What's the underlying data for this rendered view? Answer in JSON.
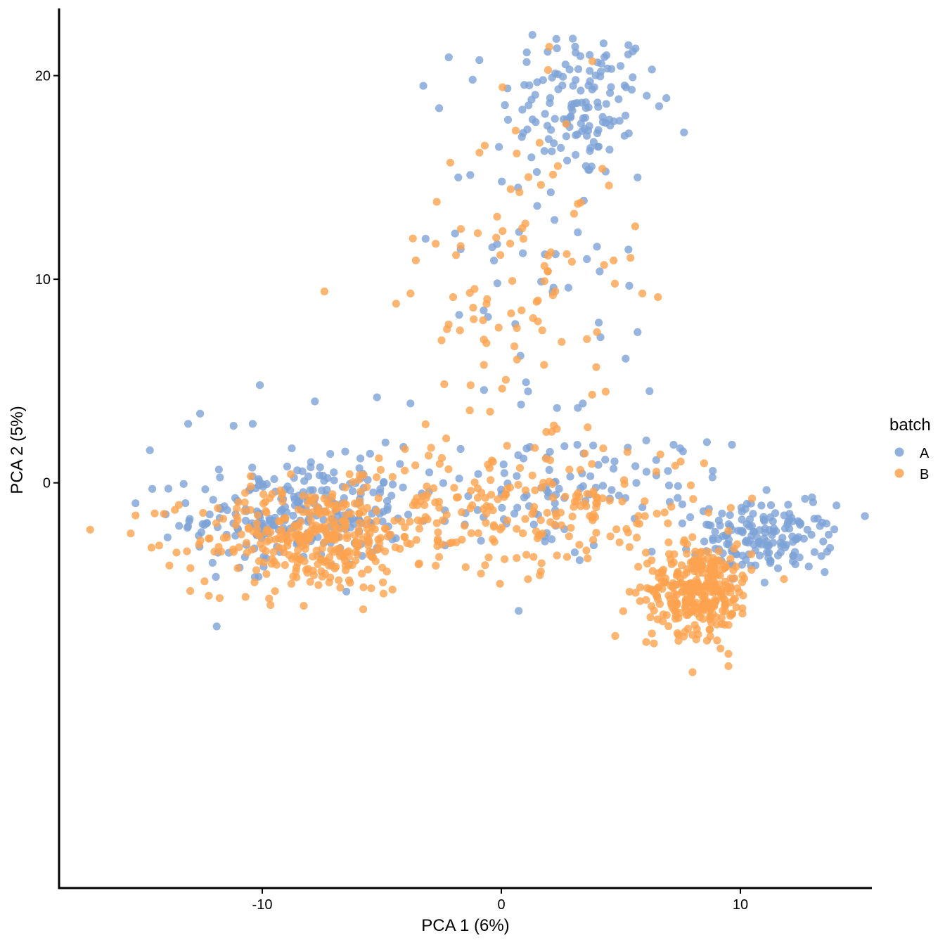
{
  "chart_data": {
    "type": "scatter",
    "xlabel": "PCA 1 (6%)",
    "ylabel": "PCA 2 (5%)",
    "xlim": [
      -18.5,
      15.5
    ],
    "ylim": [
      -19.9,
      23.3
    ],
    "x_ticks": [
      -10,
      0,
      10
    ],
    "y_ticks": [
      0,
      10,
      20
    ],
    "grid": false,
    "legend": {
      "title": "batch",
      "position": "right"
    },
    "series": [
      {
        "name": "A",
        "color": "#7da3d6",
        "clusters": [
          {
            "n": 130,
            "center": [
              3.2,
              18.6
            ],
            "spread": [
              1.6,
              1.9
            ]
          },
          {
            "n": 45,
            "center": [
              2.0,
              10.5
            ],
            "spread": [
              2.4,
              5.0
            ]
          },
          {
            "n": 260,
            "center": [
              -8.5,
              -1.6
            ],
            "spread": [
              2.2,
              1.3
            ]
          },
          {
            "n": 150,
            "center": [
              11.0,
              -2.7
            ],
            "spread": [
              1.4,
              0.8
            ]
          },
          {
            "n": 120,
            "center": [
              2.5,
              -0.5
            ],
            "spread": [
              3.5,
              1.5
            ]
          }
        ],
        "points": [
          [
            1.3,
            22.0
          ],
          [
            2.3,
            21.8
          ],
          [
            -2.2,
            20.9
          ],
          [
            4.4,
            21.0
          ],
          [
            6.3,
            20.3
          ],
          [
            -1.2,
            19.8
          ],
          [
            -2.6,
            18.4
          ],
          [
            -1.8,
            15.0
          ],
          [
            6.6,
            18.5
          ],
          [
            -10.1,
            4.8
          ],
          [
            -12.6,
            3.4
          ],
          [
            -13.1,
            2.9
          ],
          [
            -14.7,
            1.6
          ],
          [
            -15.3,
            -1.0
          ],
          [
            -14.6,
            -0.3
          ],
          [
            -5.2,
            4.2
          ],
          [
            -3.8,
            3.9
          ],
          [
            -7.8,
            4.0
          ],
          [
            -10.4,
            2.9
          ],
          [
            -11.2,
            2.8
          ],
          [
            8.6,
            2.0
          ],
          [
            13.6,
            -2.0
          ],
          [
            12.8,
            -2.3
          ],
          [
            12.2,
            -2.9
          ],
          [
            13.1,
            -3.4
          ],
          [
            12.3,
            -4.0
          ],
          [
            6.2,
            4.5
          ],
          [
            5.7,
            7.4
          ],
          [
            5.2,
            6.1
          ],
          [
            -0.1,
            16.5
          ],
          [
            0.7,
            14.5
          ],
          [
            1.5,
            13.6
          ],
          [
            3.2,
            12.3
          ],
          [
            4.0,
            11.6
          ],
          [
            5.7,
            15.0
          ]
        ]
      },
      {
        "name": "B",
        "color": "#fda24f",
        "clusters": [
          {
            "n": 300,
            "center": [
              -8.0,
              -2.8
            ],
            "spread": [
              2.4,
              1.3
            ]
          },
          {
            "n": 300,
            "center": [
              8.3,
              -5.2
            ],
            "spread": [
              1.1,
              1.1
            ]
          },
          {
            "n": 180,
            "center": [
              1.5,
              -1.2
            ],
            "spread": [
              3.6,
              1.6
            ]
          },
          {
            "n": 90,
            "center": [
              0.8,
              9.5
            ],
            "spread": [
              2.0,
              4.5
            ]
          },
          {
            "n": 60,
            "center": [
              -5.0,
              -1.8
            ],
            "spread": [
              2.8,
              1.6
            ]
          }
        ],
        "points": [
          [
            -17.2,
            -2.3
          ],
          [
            -15.3,
            -1.6
          ],
          [
            -14.5,
            -1.5
          ],
          [
            -7.4,
            9.4
          ],
          [
            -4.4,
            8.8
          ],
          [
            -3.8,
            9.3
          ],
          [
            -2.5,
            7.0
          ],
          [
            -3.7,
            12.0
          ],
          [
            -2.7,
            13.8
          ],
          [
            9.5,
            -8.4
          ],
          [
            9.5,
            -9.0
          ],
          [
            6.3,
            -7.4
          ],
          [
            5.1,
            -6.3
          ],
          [
            4.3,
            10.7
          ],
          [
            5.6,
            12.6
          ],
          [
            0.6,
            17.3
          ],
          [
            1.6,
            16.7
          ],
          [
            5.9,
            9.3
          ],
          [
            4.0,
            7.4
          ],
          [
            -10.7,
            -5.6
          ],
          [
            7.3,
            -6.3
          ],
          [
            8.0,
            -9.3
          ],
          [
            3.2,
            13.7
          ],
          [
            4.5,
            14.6
          ]
        ]
      }
    ]
  }
}
